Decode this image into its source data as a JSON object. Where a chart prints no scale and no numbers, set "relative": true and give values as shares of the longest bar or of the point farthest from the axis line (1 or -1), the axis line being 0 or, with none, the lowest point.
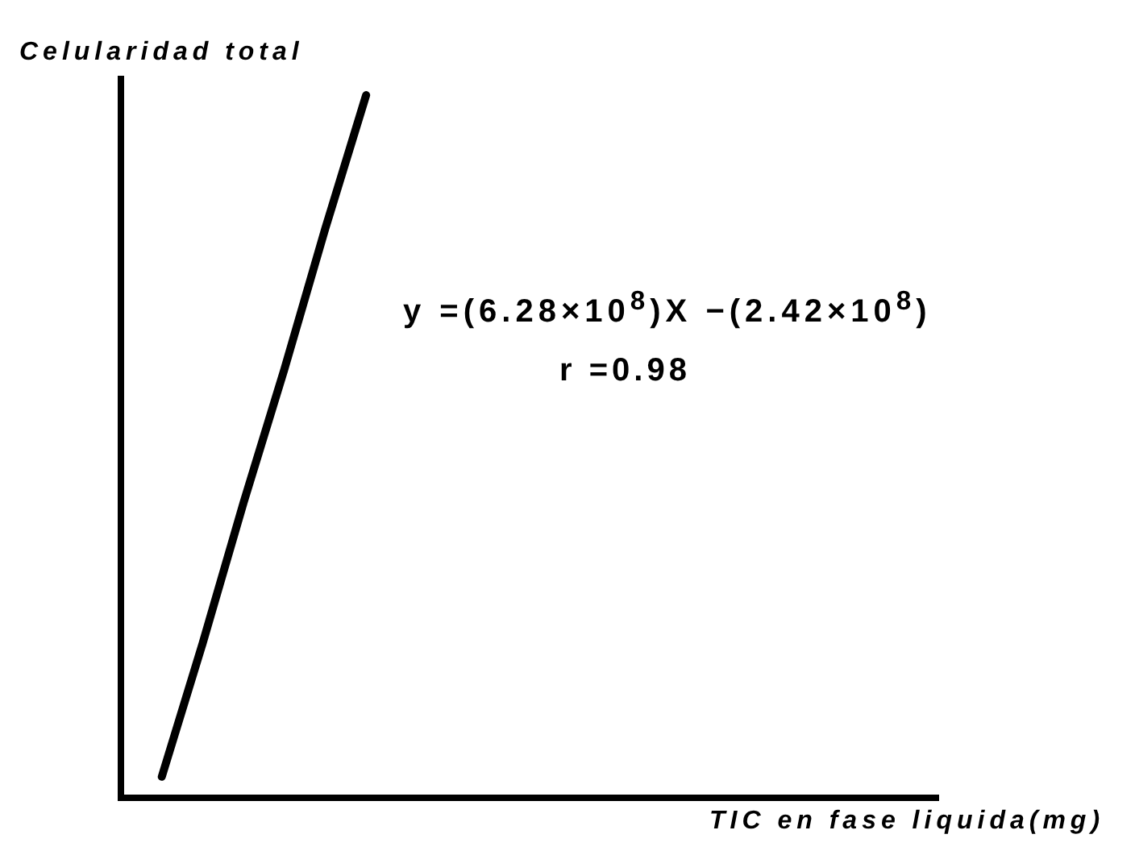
{
  "chart_data": {
    "type": "line",
    "xlabel": "TIC en fase liquida(mg)",
    "ylabel": "Celularidad total",
    "annotations": [
      "y =(6.28×10$^{8}$)X −(2.42×10$^{8}$)",
      "r =0.98"
    ],
    "categories": [
      null,
      null,
      null,
      null,
      null,
      null,
      null,
      null,
      null,
      null,
      null,
      null,
      null,
      null,
      null,
      null,
      null,
      null,
      null,
      null,
      null
    ],
    "relative": true,
    "series": [
      {
        "color": "#000000",
        "values": [
          null,
          0.03,
          0.22,
          0.42,
          0.61,
          0.81,
          1,
          null,
          null,
          null,
          null,
          null,
          null,
          null,
          null,
          null,
          null,
          null,
          null,
          null,
          null
        ]
      }
    ]
  }
}
